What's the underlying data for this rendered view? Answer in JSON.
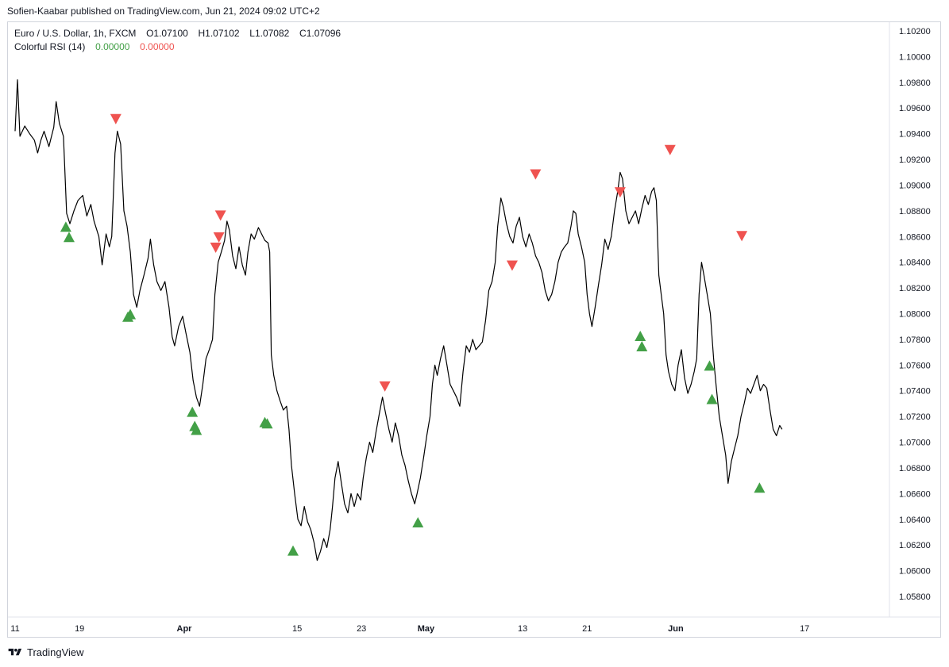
{
  "header": {
    "attribution": "Sofien-Kaabar published on TradingView.com, Jun 21, 2024 09:02 UTC+2"
  },
  "legend": {
    "symbol_line": "Euro / U.S. Dollar, 1h, FXCM",
    "o_label": "O",
    "o_value": "1.07100",
    "h_label": "H",
    "h_value": "1.07102",
    "l_label": "L",
    "l_value": "1.07082",
    "c_label": "C",
    "c_value": "1.07096",
    "indicator_name": "Colorful RSI (14)",
    "indicator_value_1": "0.00000",
    "indicator_value_2": "0.00000"
  },
  "footer": {
    "brand": "TradingView",
    "logo_icon": "tradingview-logo-icon"
  },
  "colors": {
    "line": "#000000",
    "bull": "#43a047",
    "bear": "#ef5350",
    "grid": "#d1d4dc"
  },
  "chart_data": {
    "type": "line",
    "symbol": "EURUSD",
    "timeframe": "1h",
    "y_axis_labels": [
      "1.10200",
      "1.10000",
      "1.09800",
      "1.09600",
      "1.09400",
      "1.09200",
      "1.09000",
      "1.08800",
      "1.08600",
      "1.08400",
      "1.08200",
      "1.08000",
      "1.07800",
      "1.07600",
      "1.07400",
      "1.07200",
      "1.07000",
      "1.06800",
      "1.06600",
      "1.06400",
      "1.06200",
      "1.06000",
      "1.05800"
    ],
    "ylim": [
      1.057,
      1.1025
    ],
    "x_axis_labels": [
      {
        "label": "11",
        "day": 0,
        "bold": false
      },
      {
        "label": "19",
        "day": 8,
        "bold": false
      },
      {
        "label": "Apr",
        "day": 21,
        "bold": true
      },
      {
        "label": "15",
        "day": 35,
        "bold": false
      },
      {
        "label": "23",
        "day": 43,
        "bold": false
      },
      {
        "label": "May",
        "day": 51,
        "bold": true
      },
      {
        "label": "13",
        "day": 63,
        "bold": false
      },
      {
        "label": "21",
        "day": 71,
        "bold": false
      },
      {
        "label": "Jun",
        "day": 82,
        "bold": true
      },
      {
        "label": "17",
        "day": 98,
        "bold": false
      }
    ],
    "xlim_days": [
      0,
      103
    ],
    "series": [
      {
        "points": [
          [
            0,
            1.0942
          ],
          [
            0.3,
            1.0982
          ],
          [
            0.6,
            1.0938
          ],
          [
            1.2,
            1.0946
          ],
          [
            1.8,
            1.094
          ],
          [
            2.4,
            1.0935
          ],
          [
            2.8,
            1.0925
          ],
          [
            3.2,
            1.0935
          ],
          [
            3.6,
            1.0942
          ],
          [
            4.2,
            1.093
          ],
          [
            4.8,
            1.0945
          ],
          [
            5.1,
            1.0965
          ],
          [
            5.5,
            1.0948
          ],
          [
            6.0,
            1.0938
          ],
          [
            6.4,
            1.0878
          ],
          [
            6.8,
            1.087
          ],
          [
            7.3,
            1.088
          ],
          [
            7.8,
            1.0888
          ],
          [
            8.4,
            1.0892
          ],
          [
            8.9,
            1.0876
          ],
          [
            9.4,
            1.0885
          ],
          [
            9.8,
            1.0872
          ],
          [
            10.4,
            1.086
          ],
          [
            10.8,
            1.0838
          ],
          [
            11.3,
            1.0862
          ],
          [
            11.7,
            1.0852
          ],
          [
            12.0,
            1.086
          ],
          [
            12.4,
            1.0925
          ],
          [
            12.7,
            1.0942
          ],
          [
            13.1,
            1.0932
          ],
          [
            13.5,
            1.088
          ],
          [
            13.9,
            1.0868
          ],
          [
            14.3,
            1.0848
          ],
          [
            14.7,
            1.0815
          ],
          [
            15.1,
            1.0805
          ],
          [
            15.5,
            1.0818
          ],
          [
            16.0,
            1.083
          ],
          [
            16.5,
            1.0843
          ],
          [
            16.8,
            1.0858
          ],
          [
            17.2,
            1.0838
          ],
          [
            17.6,
            1.0825
          ],
          [
            18.1,
            1.0818
          ],
          [
            18.6,
            1.0825
          ],
          [
            19.1,
            1.0805
          ],
          [
            19.5,
            1.0782
          ],
          [
            19.8,
            1.0775
          ],
          [
            20.3,
            1.079
          ],
          [
            20.8,
            1.0798
          ],
          [
            21.2,
            1.0785
          ],
          [
            21.7,
            1.077
          ],
          [
            22.1,
            1.0748
          ],
          [
            22.5,
            1.0735
          ],
          [
            22.9,
            1.0728
          ],
          [
            23.3,
            1.0745
          ],
          [
            23.7,
            1.0765
          ],
          [
            24.1,
            1.0772
          ],
          [
            24.5,
            1.078
          ],
          [
            24.8,
            1.0815
          ],
          [
            25.2,
            1.084
          ],
          [
            25.6,
            1.0848
          ],
          [
            26.0,
            1.0857
          ],
          [
            26.3,
            1.0872
          ],
          [
            26.6,
            1.0865
          ],
          [
            27.0,
            1.0845
          ],
          [
            27.4,
            1.0835
          ],
          [
            27.8,
            1.0852
          ],
          [
            28.2,
            1.0838
          ],
          [
            28.6,
            1.083
          ],
          [
            28.9,
            1.0848
          ],
          [
            29.3,
            1.0862
          ],
          [
            29.7,
            1.0858
          ],
          [
            30.2,
            1.0867
          ],
          [
            30.6,
            1.0862
          ],
          [
            31.0,
            1.0857
          ],
          [
            31.4,
            1.0855
          ],
          [
            31.6,
            1.0848
          ],
          [
            31.8,
            1.0768
          ],
          [
            32.1,
            1.0752
          ],
          [
            32.5,
            1.074
          ],
          [
            32.9,
            1.0732
          ],
          [
            33.3,
            1.0725
          ],
          [
            33.7,
            1.0728
          ],
          [
            34.0,
            1.071
          ],
          [
            34.3,
            1.0682
          ],
          [
            34.7,
            1.066
          ],
          [
            35.1,
            1.064
          ],
          [
            35.5,
            1.0635
          ],
          [
            35.9,
            1.065
          ],
          [
            36.3,
            1.0638
          ],
          [
            36.7,
            1.0632
          ],
          [
            37.1,
            1.0622
          ],
          [
            37.5,
            1.0608
          ],
          [
            37.9,
            1.0615
          ],
          [
            38.3,
            1.0625
          ],
          [
            38.7,
            1.0618
          ],
          [
            39.1,
            1.0632
          ],
          [
            39.4,
            1.065
          ],
          [
            39.7,
            1.0672
          ],
          [
            40.1,
            1.0685
          ],
          [
            40.5,
            1.0668
          ],
          [
            40.9,
            1.0652
          ],
          [
            41.3,
            1.0645
          ],
          [
            41.7,
            1.066
          ],
          [
            42.1,
            1.065
          ],
          [
            42.5,
            1.066
          ],
          [
            42.9,
            1.0655
          ],
          [
            43.2,
            1.0672
          ],
          [
            43.6,
            1.0688
          ],
          [
            44.0,
            1.07
          ],
          [
            44.4,
            1.0692
          ],
          [
            44.8,
            1.0708
          ],
          [
            45.2,
            1.0722
          ],
          [
            45.6,
            1.0735
          ],
          [
            46.0,
            1.0722
          ],
          [
            46.4,
            1.071
          ],
          [
            46.8,
            1.07
          ],
          [
            47.2,
            1.0715
          ],
          [
            47.6,
            1.0705
          ],
          [
            48.0,
            1.069
          ],
          [
            48.4,
            1.0682
          ],
          [
            48.8,
            1.067
          ],
          [
            49.2,
            1.066
          ],
          [
            49.6,
            1.0652
          ],
          [
            49.9,
            1.066
          ],
          [
            50.3,
            1.0672
          ],
          [
            50.7,
            1.0688
          ],
          [
            51.1,
            1.0705
          ],
          [
            51.5,
            1.072
          ],
          [
            51.8,
            1.0745
          ],
          [
            52.1,
            1.076
          ],
          [
            52.4,
            1.0752
          ],
          [
            52.8,
            1.0765
          ],
          [
            53.2,
            1.0775
          ],
          [
            53.6,
            1.076
          ],
          [
            54.0,
            1.0745
          ],
          [
            54.4,
            1.074
          ],
          [
            54.8,
            1.0735
          ],
          [
            55.2,
            1.0728
          ],
          [
            55.6,
            1.0755
          ],
          [
            56.0,
            1.0775
          ],
          [
            56.4,
            1.077
          ],
          [
            56.8,
            1.078
          ],
          [
            57.2,
            1.0772
          ],
          [
            57.6,
            1.0775
          ],
          [
            58.0,
            1.0778
          ],
          [
            58.4,
            1.0795
          ],
          [
            58.8,
            1.0818
          ],
          [
            59.2,
            1.0825
          ],
          [
            59.6,
            1.084
          ],
          [
            59.9,
            1.0868
          ],
          [
            60.3,
            1.089
          ],
          [
            60.6,
            1.0883
          ],
          [
            61.0,
            1.087
          ],
          [
            61.4,
            1.086
          ],
          [
            61.8,
            1.0855
          ],
          [
            62.2,
            1.0868
          ],
          [
            62.6,
            1.0875
          ],
          [
            63.0,
            1.086
          ],
          [
            63.4,
            1.0852
          ],
          [
            63.8,
            1.0862
          ],
          [
            64.2,
            1.0855
          ],
          [
            64.6,
            1.0845
          ],
          [
            65.0,
            1.084
          ],
          [
            65.4,
            1.0832
          ],
          [
            65.8,
            1.0818
          ],
          [
            66.2,
            1.081
          ],
          [
            66.6,
            1.0815
          ],
          [
            67.0,
            1.0825
          ],
          [
            67.4,
            1.084
          ],
          [
            67.8,
            1.0848
          ],
          [
            68.2,
            1.0852
          ],
          [
            68.6,
            1.0855
          ],
          [
            69.0,
            1.0868
          ],
          [
            69.3,
            1.088
          ],
          [
            69.6,
            1.0878
          ],
          [
            69.9,
            1.0862
          ],
          [
            70.3,
            1.0852
          ],
          [
            70.7,
            1.084
          ],
          [
            71.0,
            1.0815
          ],
          [
            71.3,
            1.08
          ],
          [
            71.6,
            1.079
          ],
          [
            72.0,
            1.0805
          ],
          [
            72.4,
            1.0822
          ],
          [
            72.8,
            1.0838
          ],
          [
            73.2,
            1.0858
          ],
          [
            73.6,
            1.085
          ],
          [
            74.0,
            1.086
          ],
          [
            74.4,
            1.088
          ],
          [
            74.8,
            1.0895
          ],
          [
            75.1,
            1.091
          ],
          [
            75.4,
            1.0905
          ],
          [
            75.8,
            1.088
          ],
          [
            76.2,
            1.087
          ],
          [
            76.6,
            1.0875
          ],
          [
            77.0,
            1.088
          ],
          [
            77.4,
            1.087
          ],
          [
            77.8,
            1.0882
          ],
          [
            78.2,
            1.0892
          ],
          [
            78.6,
            1.0885
          ],
          [
            79.0,
            1.0895
          ],
          [
            79.3,
            1.0898
          ],
          [
            79.6,
            1.0888
          ],
          [
            79.9,
            1.083
          ],
          [
            80.2,
            1.0815
          ],
          [
            80.5,
            1.08
          ],
          [
            80.8,
            1.0768
          ],
          [
            81.1,
            1.0755
          ],
          [
            81.5,
            1.0745
          ],
          [
            81.9,
            1.074
          ],
          [
            82.3,
            1.076
          ],
          [
            82.7,
            1.0772
          ],
          [
            83.1,
            1.075
          ],
          [
            83.5,
            1.0738
          ],
          [
            83.9,
            1.0745
          ],
          [
            84.3,
            1.0755
          ],
          [
            84.6,
            1.0765
          ],
          [
            84.9,
            1.0815
          ],
          [
            85.2,
            1.084
          ],
          [
            85.5,
            1.083
          ],
          [
            85.9,
            1.0815
          ],
          [
            86.3,
            1.08
          ],
          [
            86.7,
            1.0765
          ],
          [
            87.0,
            1.0745
          ],
          [
            87.4,
            1.072
          ],
          [
            87.8,
            1.0705
          ],
          [
            88.2,
            1.069
          ],
          [
            88.5,
            1.0668
          ],
          [
            88.9,
            1.0685
          ],
          [
            89.3,
            1.0695
          ],
          [
            89.7,
            1.0705
          ],
          [
            90.1,
            1.072
          ],
          [
            90.5,
            1.073
          ],
          [
            90.9,
            1.0742
          ],
          [
            91.3,
            1.0738
          ],
          [
            91.7,
            1.0745
          ],
          [
            92.1,
            1.0752
          ],
          [
            92.5,
            1.074
          ],
          [
            92.9,
            1.0745
          ],
          [
            93.3,
            1.0742
          ],
          [
            93.7,
            1.0725
          ],
          [
            94.1,
            1.071
          ],
          [
            94.5,
            1.0705
          ],
          [
            94.9,
            1.0713
          ],
          [
            95.2,
            1.071
          ]
        ]
      }
    ],
    "signals": {
      "bullish": [
        [
          6.3,
          1.0868
        ],
        [
          6.7,
          1.086
        ],
        [
          14.0,
          1.0798
        ],
        [
          14.3,
          1.08
        ],
        [
          22.0,
          1.0724
        ],
        [
          22.3,
          1.0713
        ],
        [
          22.5,
          1.071
        ],
        [
          31.0,
          1.0716
        ],
        [
          31.3,
          1.0715
        ],
        [
          34.5,
          1.0616
        ],
        [
          50.0,
          1.0638
        ],
        [
          77.6,
          1.0783
        ],
        [
          77.8,
          1.0775
        ],
        [
          86.2,
          1.076
        ],
        [
          86.5,
          1.0734
        ],
        [
          92.4,
          1.0665
        ]
      ],
      "bearish": [
        [
          12.5,
          1.0951
        ],
        [
          24.9,
          1.0851
        ],
        [
          25.3,
          1.0859
        ],
        [
          25.5,
          1.0876
        ],
        [
          45.9,
          1.0743
        ],
        [
          61.7,
          1.0837
        ],
        [
          64.6,
          1.0908
        ],
        [
          75.1,
          1.0894
        ],
        [
          81.3,
          1.0927
        ],
        [
          90.2,
          1.086
        ]
      ]
    }
  }
}
